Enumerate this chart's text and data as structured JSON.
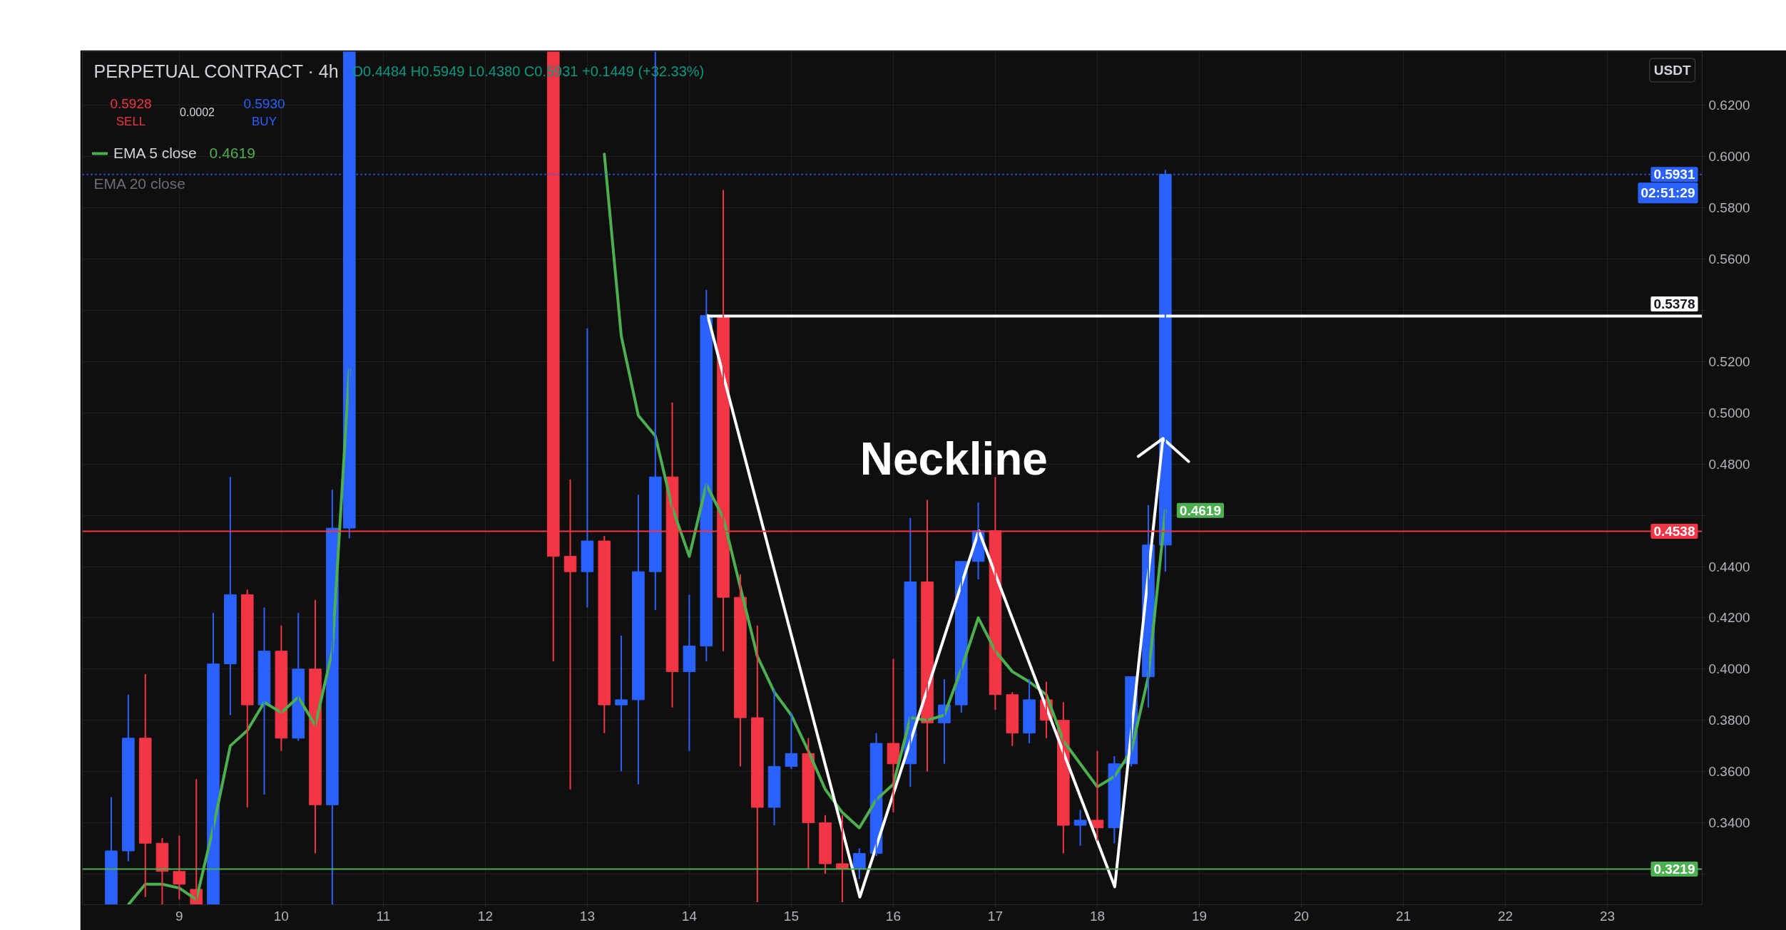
{
  "chart_data": {
    "type": "candlestick",
    "title": "PERPETUAL CONTRACT · 4h",
    "ylabel": "USDT",
    "x": [
      8.333,
      8.5,
      8.667,
      8.833,
      9,
      9.167,
      9.333,
      9.5,
      9.667,
      9.833,
      10,
      10.167,
      10.333,
      10.5,
      10.667,
      12.667,
      12.833,
      13,
      13.167,
      13.333,
      13.5,
      13.667,
      13.833,
      14,
      14.167,
      14.333,
      14.5,
      14.667,
      14.833,
      15,
      15.167,
      15.333,
      15.5,
      15.667,
      15.833,
      16,
      16.167,
      16.333,
      16.5,
      16.667,
      16.833,
      17,
      17.167,
      17.333,
      17.5,
      17.667,
      17.833,
      18,
      18.167,
      18.333,
      18.5,
      18.667
    ],
    "ohlc": [
      [
        0.308,
        0.35,
        0.308,
        0.329
      ],
      [
        0.329,
        0.39,
        0.325,
        0.373
      ],
      [
        0.373,
        0.398,
        0.311,
        0.332
      ],
      [
        0.332,
        0.334,
        0.308,
        0.321
      ],
      [
        0.321,
        0.335,
        0.31,
        0.316
      ],
      [
        0.314,
        0.357,
        0.308,
        0.308
      ],
      [
        0.308,
        0.422,
        0.308,
        0.402
      ],
      [
        0.402,
        0.475,
        0.382,
        0.429
      ],
      [
        0.429,
        0.431,
        0.346,
        0.386
      ],
      [
        0.386,
        0.424,
        0.351,
        0.407
      ],
      [
        0.407,
        0.417,
        0.368,
        0.373
      ],
      [
        0.373,
        0.422,
        0.372,
        0.4
      ],
      [
        0.4,
        0.427,
        0.328,
        0.347
      ],
      [
        0.347,
        0.47,
        0.308,
        0.455
      ],
      [
        0.455,
        0.641,
        0.451,
        0.641
      ],
      [
        0.641,
        0.641,
        0.403,
        0.444
      ],
      [
        0.444,
        0.474,
        0.353,
        0.438
      ],
      [
        0.438,
        0.533,
        0.424,
        0.45
      ],
      [
        0.45,
        0.452,
        0.375,
        0.386
      ],
      [
        0.386,
        0.413,
        0.36,
        0.388
      ],
      [
        0.388,
        0.468,
        0.355,
        0.438
      ],
      [
        0.438,
        0.641,
        0.423,
        0.475
      ],
      [
        0.475,
        0.504,
        0.385,
        0.399
      ],
      [
        0.399,
        0.429,
        0.368,
        0.409
      ],
      [
        0.409,
        0.548,
        0.403,
        0.538
      ],
      [
        0.538,
        0.587,
        0.407,
        0.428
      ],
      [
        0.428,
        0.437,
        0.362,
        0.381
      ],
      [
        0.381,
        0.417,
        0.309,
        0.346
      ],
      [
        0.346,
        0.392,
        0.339,
        0.362
      ],
      [
        0.362,
        0.383,
        0.361,
        0.367
      ],
      [
        0.367,
        0.373,
        0.322,
        0.34
      ],
      [
        0.34,
        0.343,
        0.32,
        0.324
      ],
      [
        0.324,
        0.343,
        0.309,
        0.322
      ],
      [
        0.322,
        0.33,
        0.318,
        0.328
      ],
      [
        0.328,
        0.375,
        0.327,
        0.371
      ],
      [
        0.371,
        0.404,
        0.344,
        0.363
      ],
      [
        0.363,
        0.459,
        0.354,
        0.434
      ],
      [
        0.434,
        0.466,
        0.36,
        0.379
      ],
      [
        0.379,
        0.396,
        0.363,
        0.386
      ],
      [
        0.386,
        0.442,
        0.383,
        0.442
      ],
      [
        0.442,
        0.465,
        0.435,
        0.454
      ],
      [
        0.454,
        0.475,
        0.384,
        0.39
      ],
      [
        0.39,
        0.391,
        0.37,
        0.375
      ],
      [
        0.375,
        0.396,
        0.371,
        0.388
      ],
      [
        0.388,
        0.395,
        0.373,
        0.38
      ],
      [
        0.38,
        0.387,
        0.328,
        0.339
      ],
      [
        0.339,
        0.345,
        0.331,
        0.341
      ],
      [
        0.341,
        0.368,
        0.333,
        0.338
      ],
      [
        0.338,
        0.366,
        0.332,
        0.363
      ],
      [
        0.363,
        0.397,
        0.362,
        0.397
      ],
      [
        0.397,
        0.464,
        0.385,
        0.4484
      ],
      [
        0.4484,
        0.5949,
        0.438,
        0.5931
      ]
    ],
    "colors": [
      "#2962ff",
      "#2962ff",
      "#f23645",
      "#f23645",
      "#f23645",
      "#f23645",
      "#2962ff",
      "#2962ff",
      "#f23645",
      "#2962ff",
      "#f23645",
      "#2962ff",
      "#f23645",
      "#2962ff",
      "#2962ff",
      "#f23645",
      "#f23645",
      "#2962ff",
      "#f23645",
      "#2962ff",
      "#2962ff",
      "#2962ff",
      "#f23645",
      "#2962ff",
      "#2962ff",
      "#f23645",
      "#f23645",
      "#f23645",
      "#2962ff",
      "#2962ff",
      "#f23645",
      "#f23645",
      "#f23645",
      "#2962ff",
      "#2962ff",
      "#f23645",
      "#2962ff",
      "#f23645",
      "#2962ff",
      "#2962ff",
      "#2962ff",
      "#f23645",
      "#f23645",
      "#2962ff",
      "#f23645",
      "#f23645",
      "#2962ff",
      "#f23645",
      "#2962ff",
      "#2962ff",
      "#2962ff",
      "#2962ff"
    ],
    "series": [
      {
        "type": "line",
        "name": "EMA 5 close",
        "color": "#4caf50",
        "values": [
          null,
          0.308,
          0.316,
          0.316,
          0.3145,
          0.31,
          0.338,
          0.37,
          0.376,
          0.387,
          0.383,
          0.389,
          0.378,
          0.407,
          0.517,
          null,
          null,
          null,
          0.601,
          0.53,
          0.499,
          0.491,
          0.463,
          0.444,
          0.472,
          0.459,
          0.432,
          0.405,
          0.391,
          0.382,
          0.368,
          0.353,
          0.344,
          0.338,
          0.349,
          0.355,
          0.381,
          0.38,
          0.382,
          0.4,
          0.42,
          0.407,
          0.399,
          0.395,
          0.39,
          0.372,
          0.363,
          0.354,
          0.358,
          0.368,
          0.397,
          0.4619
        ],
        "value_labels": [
          null,
          null,
          null,
          null,
          null,
          null,
          null,
          null,
          null,
          null,
          null,
          null,
          null,
          null,
          null,
          null,
          null,
          null,
          null,
          null,
          null,
          null,
          null,
          null,
          null,
          null,
          null,
          null,
          null,
          null,
          null,
          null,
          null,
          null,
          null,
          null,
          null,
          null,
          null,
          null,
          null,
          null,
          null,
          null,
          null,
          null,
          null,
          null,
          null,
          null,
          null,
          "0.4619"
        ]
      },
      {
        "type": "line",
        "color": "#ffffff",
        "x": [
          14.18,
          15.672,
          16.838,
          18.171,
          18.643,
          18.402,
          18.643,
          18.895
        ],
        "values": [
          0.538,
          0.311,
          0.454,
          0.315,
          0.49,
          0.483,
          0.49,
          0.481
        ]
      },
      {
        "type": "line",
        "color": "#ffffff",
        "x": [
          14.18,
          23.93
        ],
        "values": [
          0.5378,
          0.5378
        ],
        "value_labels": [
          null,
          "0.5378"
        ]
      }
    ],
    "ref_lines": [
      {
        "axis": "y",
        "value": 0.5931,
        "label": "0.5931",
        "color": "#2962ff",
        "line_style": "dotted"
      },
      {
        "axis": "y",
        "value": 0.4538,
        "label": "0.4538",
        "color": "#f23645"
      },
      {
        "axis": "y",
        "value": 0.3219,
        "label": "0.3219",
        "color": "#4caf50"
      }
    ],
    "annotations": [
      "O0.4484 H0.5949 L0.4380 C0.5931 +0.1449 (+32.33%)",
      "0.5928",
      "SELL",
      "0.0002",
      "0.5930",
      "BUY",
      "0.4619",
      "EMA 20 close",
      "Neckline",
      {
        "text": "02:51:29",
        "y": 0.5931
      }
    ],
    "xlim": [
      8.05,
      23.93
    ],
    "ylim": [
      0.308,
      0.641
    ],
    "xticks": [
      9,
      10,
      11,
      12,
      13,
      14,
      15,
      16,
      17,
      18,
      19,
      20,
      21,
      22,
      23
    ],
    "yticks": [
      {
        "value": 0.32,
        "label": null
      },
      {
        "value": 0.34,
        "label": "0.3400"
      },
      {
        "value": 0.36,
        "label": "0.3600"
      },
      {
        "value": 0.38,
        "label": "0.3800"
      },
      {
        "value": 0.4,
        "label": "0.4000"
      },
      {
        "value": 0.42,
        "label": "0.4200"
      },
      {
        "value": 0.44,
        "label": "0.4400"
      },
      {
        "value": 0.46,
        "label": null
      },
      {
        "value": 0.48,
        "label": "0.4800"
      },
      {
        "value": 0.5,
        "label": "0.5000"
      },
      {
        "value": 0.52,
        "label": "0.5200"
      },
      {
        "value": 0.54,
        "label": null
      },
      {
        "value": 0.56,
        "label": "0.5600"
      },
      {
        "value": 0.58,
        "label": "0.5800"
      },
      {
        "value": 0.6,
        "label": "0.6000"
      },
      {
        "value": 0.62,
        "label": "0.6200"
      }
    ],
    "grid": true,
    "legend": "top left"
  }
}
